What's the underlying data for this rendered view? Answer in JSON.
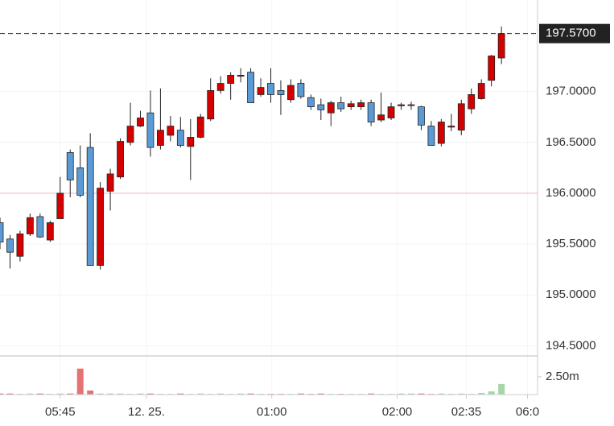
{
  "chart_data": {
    "type": "candlestick",
    "up_color": "#d40000",
    "down_color": "#5b9bd5",
    "outline_color": "#222222",
    "open": [
      195.71,
      195.55,
      195.38,
      195.6,
      195.77,
      195.54,
      195.75,
      196.4,
      196.25,
      196.45,
      195.29,
      196.02,
      196.16,
      196.5,
      196.66,
      196.79,
      196.47,
      196.57,
      196.62,
      196.46,
      196.55,
      196.73,
      197.01,
      197.08,
      197.15,
      197.19,
      196.97,
      197.08,
      197.01,
      196.92,
      197.08,
      196.94,
      196.87,
      196.79,
      196.89,
      196.85,
      196.85,
      196.89,
      196.72,
      196.74,
      196.86,
      196.87,
      196.85,
      196.66,
      196.49,
      196.65,
      196.62,
      196.83,
      196.93,
      197.11,
      197.33
    ],
    "high": [
      195.76,
      195.59,
      195.63,
      195.8,
      195.8,
      195.73,
      196.16,
      196.43,
      196.47,
      196.59,
      196.11,
      196.24,
      196.54,
      196.89,
      196.81,
      197.01,
      197.03,
      196.76,
      196.75,
      196.73,
      196.78,
      197.13,
      197.15,
      197.19,
      197.23,
      197.23,
      197.13,
      197.23,
      197.11,
      197.12,
      197.12,
      196.97,
      196.93,
      196.91,
      196.95,
      196.91,
      196.92,
      196.92,
      196.99,
      196.89,
      196.89,
      196.9,
      196.86,
      196.71,
      196.73,
      196.78,
      196.92,
      197.03,
      197.12,
      197.36,
      197.64
    ],
    "low": [
      195.45,
      195.26,
      195.33,
      195.58,
      195.56,
      195.52,
      195.75,
      195.96,
      195.96,
      195.29,
      195.25,
      195.83,
      196.14,
      196.47,
      196.65,
      196.36,
      196.43,
      196.51,
      196.45,
      196.13,
      196.54,
      196.71,
      196.98,
      196.92,
      197.09,
      196.89,
      196.95,
      196.89,
      196.77,
      196.89,
      196.93,
      196.82,
      196.72,
      196.66,
      196.8,
      196.82,
      196.82,
      196.66,
      196.7,
      196.72,
      196.82,
      196.82,
      196.62,
      196.47,
      196.46,
      196.61,
      196.57,
      196.78,
      196.92,
      197.05,
      197.27
    ],
    "close": [
      195.52,
      195.42,
      195.6,
      195.76,
      195.57,
      195.71,
      196.0,
      196.13,
      195.98,
      195.29,
      196.05,
      196.19,
      196.51,
      196.66,
      196.74,
      196.45,
      196.62,
      196.66,
      196.47,
      196.55,
      196.75,
      197.01,
      197.08,
      197.16,
      197.16,
      196.89,
      197.04,
      196.97,
      196.97,
      197.06,
      196.95,
      196.85,
      196.82,
      196.89,
      196.83,
      196.88,
      196.89,
      196.7,
      196.77,
      196.85,
      196.87,
      196.87,
      196.67,
      196.47,
      196.7,
      196.66,
      196.88,
      196.97,
      197.08,
      197.35,
      197.57
    ],
    "last_price_label": "197.5700",
    "reference_line": 196.0,
    "ylim": [
      194.4,
      197.9
    ],
    "yticks": [
      {
        "value": 194.5,
        "label": "194.5000"
      },
      {
        "value": 195.0,
        "label": "195.0000"
      },
      {
        "value": 195.5,
        "label": "195.5000"
      },
      {
        "value": 196.0,
        "label": "196.0000"
      },
      {
        "value": 196.5,
        "label": "196.5000"
      },
      {
        "value": 197.0,
        "label": "197.0000"
      }
    ],
    "xlim": [
      0,
      53.6
    ],
    "xticks": [
      {
        "value": 6.0,
        "label": "05:45"
      },
      {
        "value": 14.6,
        "label": "12. 25."
      },
      {
        "value": 27.1,
        "label": "01:00"
      },
      {
        "value": 39.6,
        "label": "02:00"
      },
      {
        "value": 46.5,
        "label": "02:35"
      },
      {
        "value": 52.6,
        "label": "06:0"
      }
    ],
    "volume": {
      "up_color": "#a5d6a7",
      "down_color": "#e57373",
      "values": [
        150000,
        150000,
        100000,
        150000,
        150000,
        100000,
        150000,
        150000,
        3640000,
        570000,
        150000,
        150000,
        150000,
        100000,
        150000,
        150000,
        100000,
        100000,
        150000,
        100000,
        150000,
        100000,
        150000,
        100000,
        150000,
        150000,
        100000,
        100000,
        100000,
        100000,
        150000,
        100000,
        150000,
        100000,
        100000,
        100000,
        100000,
        150000,
        100000,
        100000,
        150000,
        150000,
        150000,
        100000,
        150000,
        100000,
        150000,
        100000,
        230000,
        450000,
        1480000
      ],
      "ylim": [
        0,
        5300000
      ],
      "yticks": [
        {
          "value": 2500000,
          "label": "2.50m"
        }
      ]
    }
  }
}
